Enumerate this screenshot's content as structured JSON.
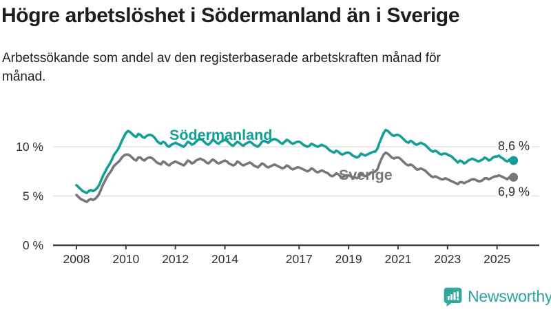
{
  "header": {
    "title": "Högre arbetslöshet i Södermanland än i Sverige",
    "subtitle": "Arbetssökande som andel av den registerbaserade arbetskraften månad för månad."
  },
  "footer": {
    "brand": "Newsworthy",
    "logo_icon": "speech-bubble-bar-chart-exclamation-icon"
  },
  "colors": {
    "soedermanland": "#12A096",
    "sverige": "#77777A",
    "grid": "#DCDCDC",
    "axis": "#3D3D3D",
    "tick_text": "#2E2E2E",
    "title_text": "#1D1D1B",
    "brand_teal": "#2AA39A"
  },
  "chart_data": {
    "type": "line",
    "unit": "%",
    "frequency": "monthly",
    "x_start": "2008-01",
    "x_end": "2025-09",
    "grid": "horizontal",
    "legend_position": "inline-labels",
    "y_axis": {
      "range": [
        0,
        12.5
      ],
      "ticks": [
        {
          "value": 0,
          "label": "0 %"
        },
        {
          "value": 5,
          "label": "5 %"
        },
        {
          "value": 10,
          "label": "10 %"
        }
      ]
    },
    "x_axis": {
      "ticks": [
        2008,
        2010,
        2012,
        2014,
        2017,
        2019,
        2021,
        2023,
        2025
      ]
    },
    "series": [
      {
        "id": "sodermanland",
        "name": "Södermanland",
        "color": "#12A096",
        "end_value": 8.6,
        "end_label": "8,6 %",
        "values": [
          [
            6.1,
            5.9,
            5.7,
            5.5,
            5.4,
            5.3,
            5.5,
            5.6,
            5.5,
            5.6,
            5.8,
            6.1
          ],
          [
            6.6,
            7.1,
            7.5,
            7.9,
            8.2,
            8.6,
            9.1,
            9.4,
            9.7,
            10.1,
            10.6,
            11.0
          ],
          [
            11.4,
            11.6,
            11.5,
            11.3,
            11.1,
            11.0,
            11.3,
            11.2,
            11.0,
            10.9,
            11.1,
            11.2
          ],
          [
            11.2,
            11.1,
            10.9,
            10.6,
            10.4,
            10.3,
            10.5,
            10.4,
            10.1,
            10.0,
            10.2,
            10.3
          ],
          [
            10.4,
            10.3,
            10.2,
            10.1,
            10.0,
            10.2,
            10.5,
            10.4,
            10.2,
            10.3,
            10.5,
            10.7
          ],
          [
            10.8,
            10.7,
            10.5,
            10.3,
            10.2,
            10.4,
            10.7,
            10.6,
            10.4,
            10.3,
            10.5,
            10.6
          ],
          [
            10.7,
            10.6,
            10.4,
            10.2,
            10.1,
            10.3,
            10.5,
            10.4,
            10.2,
            10.1,
            10.3,
            10.4
          ],
          [
            10.5,
            10.4,
            10.2,
            10.1,
            10.0,
            10.2,
            10.5,
            10.6,
            10.5,
            10.4,
            10.6,
            10.7
          ],
          [
            10.8,
            10.7,
            10.6,
            10.4,
            10.3,
            10.5,
            10.7,
            10.6,
            10.4,
            10.3,
            10.4,
            10.5
          ],
          [
            10.5,
            10.4,
            10.2,
            10.1,
            10.0,
            10.1,
            10.3,
            10.2,
            10.1,
            10.0,
            10.1,
            10.2
          ],
          [
            10.1,
            10.0,
            9.8,
            9.6,
            9.5,
            9.4,
            9.6,
            9.5,
            9.3,
            9.2,
            9.3,
            9.4
          ],
          [
            9.4,
            9.3,
            9.1,
            9.0,
            8.9,
            9.0,
            9.3,
            9.2,
            9.1,
            9.2,
            9.3,
            9.4
          ],
          [
            9.5,
            9.5,
            9.8,
            10.4,
            10.9,
            11.4,
            11.7,
            11.6,
            11.4,
            11.2,
            11.1,
            11.2
          ],
          [
            11.2,
            11.1,
            10.9,
            10.7,
            10.5,
            10.4,
            10.6,
            10.5,
            10.3,
            10.2,
            10.3,
            10.4
          ],
          [
            10.3,
            10.2,
            10.0,
            9.8,
            9.6,
            9.5,
            9.6,
            9.5,
            9.3,
            9.2,
            9.3,
            9.3
          ],
          [
            9.2,
            9.1,
            9.0,
            8.8,
            8.6,
            8.4,
            8.6,
            8.5,
            8.3,
            8.4,
            8.6,
            8.7
          ],
          [
            8.8,
            8.7,
            8.6,
            8.5,
            8.6,
            8.7,
            8.9,
            8.8,
            8.6,
            8.7,
            8.9,
            9.0
          ],
          [
            9.0,
            9.1,
            8.9,
            8.8,
            8.6,
            8.5,
            8.7,
            8.8,
            8.6
          ]
        ]
      },
      {
        "id": "sverige",
        "name": "Sverige",
        "color": "#77777A",
        "end_value": 6.9,
        "end_label": "6,9 %",
        "values": [
          [
            5.1,
            4.9,
            4.7,
            4.6,
            4.5,
            4.4,
            4.6,
            4.7,
            4.6,
            4.7,
            4.9,
            5.2
          ],
          [
            5.7,
            6.2,
            6.6,
            7.0,
            7.3,
            7.6,
            8.0,
            8.2,
            8.4,
            8.6,
            8.9,
            9.1
          ],
          [
            9.2,
            9.2,
            9.1,
            8.9,
            8.7,
            8.6,
            8.9,
            8.9,
            8.7,
            8.6,
            8.8,
            8.9
          ],
          [
            8.9,
            8.8,
            8.6,
            8.4,
            8.3,
            8.2,
            8.5,
            8.4,
            8.2,
            8.1,
            8.3,
            8.4
          ],
          [
            8.5,
            8.4,
            8.3,
            8.2,
            8.1,
            8.3,
            8.6,
            8.5,
            8.3,
            8.4,
            8.6,
            8.7
          ],
          [
            8.8,
            8.7,
            8.6,
            8.4,
            8.3,
            8.5,
            8.7,
            8.6,
            8.4,
            8.3,
            8.4,
            8.5
          ],
          [
            8.6,
            8.5,
            8.3,
            8.2,
            8.1,
            8.2,
            8.5,
            8.4,
            8.2,
            8.1,
            8.2,
            8.3
          ],
          [
            8.4,
            8.3,
            8.1,
            8.0,
            7.9,
            8.1,
            8.3,
            8.2,
            8.0,
            7.9,
            8.0,
            8.1
          ],
          [
            8.2,
            8.1,
            8.0,
            7.9,
            7.8,
            7.9,
            8.1,
            8.0,
            7.8,
            7.7,
            7.8,
            7.9
          ],
          [
            7.9,
            7.8,
            7.7,
            7.6,
            7.5,
            7.6,
            7.8,
            7.7,
            7.5,
            7.4,
            7.5,
            7.6
          ],
          [
            7.5,
            7.4,
            7.3,
            7.1,
            7.0,
            7.1,
            7.3,
            7.2,
            7.0,
            6.9,
            7.0,
            7.1
          ],
          [
            7.1,
            7.0,
            6.9,
            6.9,
            6.8,
            6.9,
            7.2,
            7.1,
            7.0,
            7.1,
            7.2,
            7.4
          ],
          [
            7.4,
            7.5,
            7.7,
            8.3,
            8.8,
            9.2,
            9.4,
            9.3,
            9.1,
            8.9,
            8.8,
            8.9
          ],
          [
            8.9,
            8.8,
            8.6,
            8.4,
            8.2,
            8.1,
            8.2,
            8.1,
            7.9,
            7.7,
            7.7,
            7.8
          ],
          [
            7.7,
            7.6,
            7.4,
            7.2,
            7.0,
            6.9,
            7.0,
            6.9,
            6.8,
            6.7,
            6.7,
            6.8
          ],
          [
            6.7,
            6.6,
            6.5,
            6.4,
            6.3,
            6.2,
            6.4,
            6.4,
            6.3,
            6.4,
            6.5,
            6.6
          ],
          [
            6.7,
            6.7,
            6.6,
            6.5,
            6.5,
            6.6,
            6.8,
            6.8,
            6.7,
            6.8,
            6.9,
            7.0
          ],
          [
            7.0,
            7.1,
            7.0,
            6.9,
            6.8,
            6.7,
            6.9,
            7.0,
            6.9
          ]
        ]
      }
    ]
  }
}
